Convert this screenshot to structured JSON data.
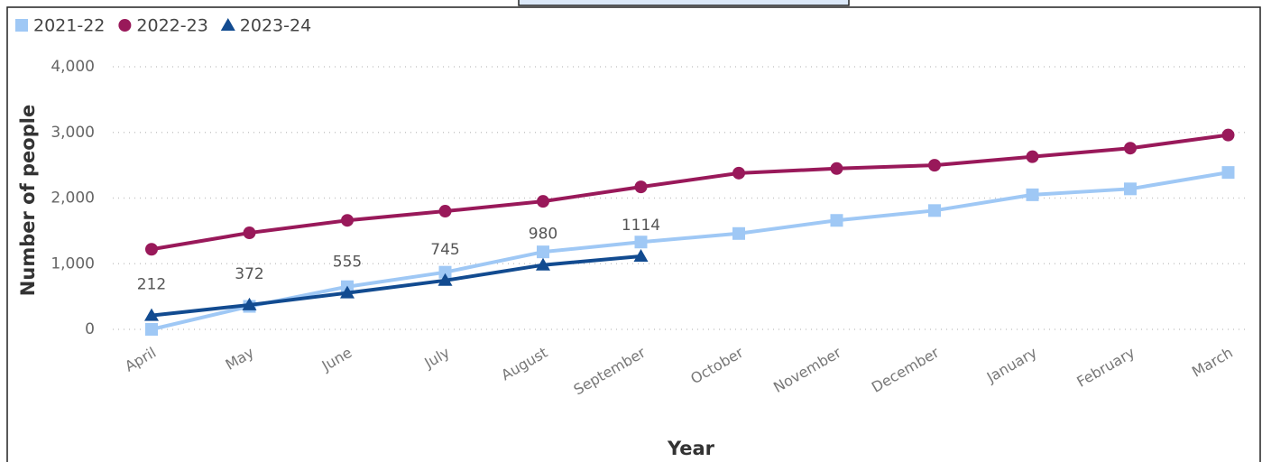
{
  "chart_data": {
    "type": "line",
    "x_label": "Year",
    "y_label": "Number of people",
    "categories": [
      "April",
      "May",
      "June",
      "July",
      "August",
      "September",
      "October",
      "November",
      "December",
      "January",
      "February",
      "March"
    ],
    "series": [
      {
        "name": "2021-22",
        "color": "#9fc8f5",
        "marker": "square",
        "values": [
          0,
          350,
          650,
          870,
          1180,
          1330,
          1460,
          1660,
          1810,
          2050,
          2140,
          2390
        ]
      },
      {
        "name": "2022-23",
        "color": "#99195a",
        "marker": "circle",
        "values": [
          1220,
          1470,
          1660,
          1800,
          1950,
          2170,
          2380,
          2450,
          2500,
          2630,
          2760,
          2960
        ]
      },
      {
        "name": "2023-24",
        "color": "#124b90",
        "marker": "triangle",
        "data_labels": true,
        "values": [
          212,
          372,
          555,
          745,
          980,
          1114,
          null,
          null,
          null,
          null,
          null,
          null
        ]
      }
    ],
    "ylim": [
      0,
      4000
    ],
    "yticks": [
      0,
      {
        "value": 1000,
        "label": "1,000"
      },
      {
        "value": 2000,
        "label": "2,000"
      },
      {
        "value": 3000,
        "label": "3,000"
      },
      {
        "value": 4000,
        "label": "4,000"
      }
    ],
    "grid": true,
    "legend": "top-left"
  }
}
